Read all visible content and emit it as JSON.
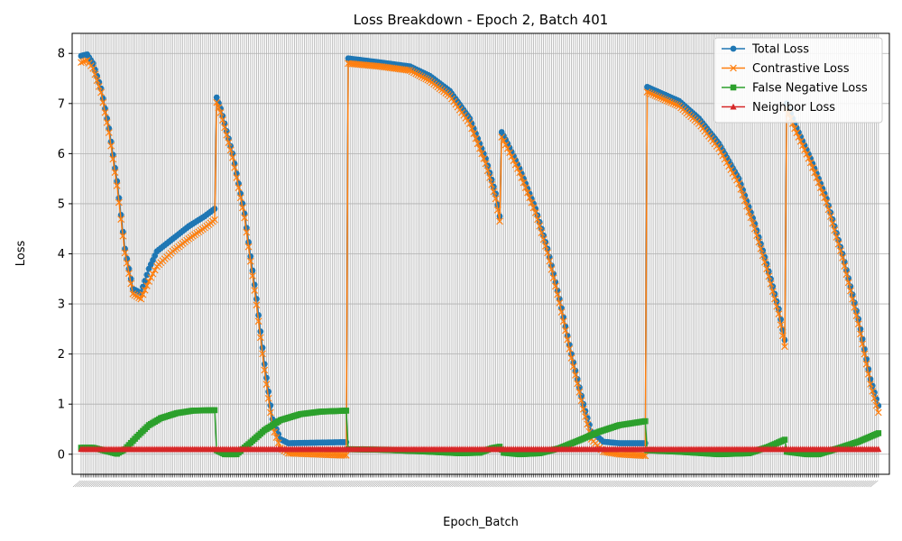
{
  "chart_data": {
    "type": "line",
    "title": "Loss Breakdown - Epoch 2, Batch 401",
    "xlabel": "Epoch_Batch",
    "ylabel": "Loss",
    "ylim": [
      -0.4,
      8.4
    ],
    "yticks": [
      0,
      1,
      2,
      3,
      4,
      5,
      6,
      7,
      8
    ],
    "xlim": [
      -4.5,
      405.5
    ],
    "x_points": 401,
    "x_tick_labels_rotated": 45,
    "grid": true,
    "legend_position": "upper right",
    "series": [
      {
        "name": "Total Loss",
        "color": "#1f77b4",
        "marker": "circle",
        "keypoints": [
          [
            0,
            7.95
          ],
          [
            3,
            7.98
          ],
          [
            6,
            7.8
          ],
          [
            10,
            7.3
          ],
          [
            14,
            6.5
          ],
          [
            18,
            5.45
          ],
          [
            22,
            4.1
          ],
          [
            26,
            3.3
          ],
          [
            30,
            3.22
          ],
          [
            34,
            3.7
          ],
          [
            38,
            4.05
          ],
          [
            46,
            4.3
          ],
          [
            54,
            4.55
          ],
          [
            62,
            4.75
          ],
          [
            67,
            4.9
          ],
          [
            68,
            7.12
          ],
          [
            70,
            6.9
          ],
          [
            76,
            6.0
          ],
          [
            82,
            4.8
          ],
          [
            88,
            3.1
          ],
          [
            92,
            1.8
          ],
          [
            96,
            0.7
          ],
          [
            100,
            0.3
          ],
          [
            104,
            0.22
          ],
          [
            130,
            0.24
          ],
          [
            133,
            0.24
          ],
          [
            134,
            7.9
          ],
          [
            150,
            7.82
          ],
          [
            165,
            7.74
          ],
          [
            175,
            7.55
          ],
          [
            185,
            7.25
          ],
          [
            195,
            6.7
          ],
          [
            203,
            5.9
          ],
          [
            208,
            5.2
          ],
          [
            210,
            4.75
          ],
          [
            211,
            6.43
          ],
          [
            214,
            6.2
          ],
          [
            220,
            5.7
          ],
          [
            228,
            4.9
          ],
          [
            234,
            4.1
          ],
          [
            240,
            3.1
          ],
          [
            246,
            2.0
          ],
          [
            252,
            1.0
          ],
          [
            256,
            0.45
          ],
          [
            262,
            0.25
          ],
          [
            270,
            0.22
          ],
          [
            283,
            0.22
          ],
          [
            284,
            7.33
          ],
          [
            300,
            7.05
          ],
          [
            310,
            6.7
          ],
          [
            320,
            6.2
          ],
          [
            330,
            5.5
          ],
          [
            338,
            4.6
          ],
          [
            344,
            3.8
          ],
          [
            350,
            2.9
          ],
          [
            353,
            2.28
          ],
          [
            354,
            7.0
          ],
          [
            358,
            6.6
          ],
          [
            366,
            5.9
          ],
          [
            374,
            5.1
          ],
          [
            382,
            4.0
          ],
          [
            390,
            2.7
          ],
          [
            396,
            1.5
          ],
          [
            402,
            0.7
          ],
          [
            407,
            0.45
          ],
          [
            410,
            0.35
          ],
          [
            411,
            7.18
          ]
        ]
      },
      {
        "name": "Contrastive Loss",
        "color": "#ff7f0e",
        "marker": "x",
        "keypoints": [
          [
            0,
            7.82
          ],
          [
            3,
            7.86
          ],
          [
            6,
            7.7
          ],
          [
            10,
            7.22
          ],
          [
            14,
            6.42
          ],
          [
            18,
            5.36
          ],
          [
            22,
            4.02
          ],
          [
            26,
            3.2
          ],
          [
            30,
            3.1
          ],
          [
            34,
            3.45
          ],
          [
            38,
            3.75
          ],
          [
            46,
            4.05
          ],
          [
            54,
            4.3
          ],
          [
            62,
            4.52
          ],
          [
            67,
            4.68
          ],
          [
            68,
            7.02
          ],
          [
            70,
            6.82
          ],
          [
            76,
            5.92
          ],
          [
            82,
            4.72
          ],
          [
            88,
            2.98
          ],
          [
            92,
            1.68
          ],
          [
            96,
            0.55
          ],
          [
            100,
            0.12
          ],
          [
            104,
            0.02
          ],
          [
            130,
            -0.02
          ],
          [
            133,
            -0.02
          ],
          [
            134,
            7.8
          ],
          [
            150,
            7.74
          ],
          [
            165,
            7.66
          ],
          [
            175,
            7.45
          ],
          [
            185,
            7.15
          ],
          [
            195,
            6.6
          ],
          [
            203,
            5.8
          ],
          [
            208,
            5.1
          ],
          [
            210,
            4.65
          ],
          [
            211,
            6.33
          ],
          [
            214,
            6.1
          ],
          [
            220,
            5.62
          ],
          [
            228,
            4.82
          ],
          [
            234,
            4.02
          ],
          [
            240,
            3.02
          ],
          [
            246,
            1.92
          ],
          [
            252,
            0.9
          ],
          [
            256,
            0.3
          ],
          [
            262,
            0.05
          ],
          [
            270,
            0.0
          ],
          [
            283,
            -0.03
          ],
          [
            284,
            7.23
          ],
          [
            300,
            6.95
          ],
          [
            310,
            6.6
          ],
          [
            320,
            6.1
          ],
          [
            330,
            5.4
          ],
          [
            338,
            4.5
          ],
          [
            344,
            3.7
          ],
          [
            350,
            2.8
          ],
          [
            353,
            2.15
          ],
          [
            354,
            6.9
          ],
          [
            358,
            6.5
          ],
          [
            366,
            5.82
          ],
          [
            374,
            5.02
          ],
          [
            382,
            3.92
          ],
          [
            390,
            2.6
          ],
          [
            396,
            1.4
          ],
          [
            402,
            0.55
          ],
          [
            407,
            0.18
          ],
          [
            410,
            0.08
          ],
          [
            411,
            7.08
          ]
        ]
      },
      {
        "name": "False Negative Loss",
        "color": "#2ca02c",
        "marker": "square",
        "keypoints": [
          [
            0,
            0.13
          ],
          [
            6,
            0.13
          ],
          [
            12,
            0.07
          ],
          [
            18,
            0.01
          ],
          [
            22,
            0.1
          ],
          [
            28,
            0.35
          ],
          [
            34,
            0.58
          ],
          [
            40,
            0.72
          ],
          [
            48,
            0.82
          ],
          [
            56,
            0.87
          ],
          [
            67,
            0.88
          ],
          [
            68,
            0.08
          ],
          [
            72,
            0.0
          ],
          [
            78,
            0.0
          ],
          [
            84,
            0.2
          ],
          [
            92,
            0.48
          ],
          [
            100,
            0.68
          ],
          [
            110,
            0.8
          ],
          [
            120,
            0.85
          ],
          [
            133,
            0.87
          ],
          [
            134,
            0.1
          ],
          [
            150,
            0.09
          ],
          [
            170,
            0.06
          ],
          [
            190,
            0.02
          ],
          [
            200,
            0.03
          ],
          [
            206,
            0.12
          ],
          [
            210,
            0.15
          ],
          [
            212,
            0.03
          ],
          [
            220,
            0.0
          ],
          [
            230,
            0.02
          ],
          [
            240,
            0.12
          ],
          [
            250,
            0.28
          ],
          [
            260,
            0.45
          ],
          [
            270,
            0.58
          ],
          [
            283,
            0.66
          ],
          [
            284,
            0.08
          ],
          [
            300,
            0.05
          ],
          [
            320,
            0.0
          ],
          [
            335,
            0.02
          ],
          [
            345,
            0.15
          ],
          [
            353,
            0.29
          ],
          [
            354,
            0.05
          ],
          [
            364,
            0.0
          ],
          [
            370,
            0.0
          ],
          [
            380,
            0.12
          ],
          [
            390,
            0.25
          ],
          [
            400,
            0.42
          ],
          [
            410,
            0.56
          ],
          [
            411,
            0.05
          ]
        ]
      },
      {
        "name": "Neighbor Loss",
        "color": "#d62728",
        "marker": "triangle",
        "keypoints": [
          [
            0,
            0.1
          ],
          [
            411,
            0.1
          ]
        ]
      }
    ]
  }
}
